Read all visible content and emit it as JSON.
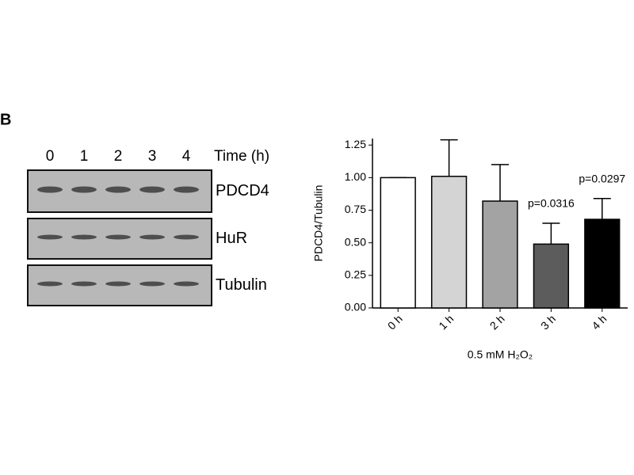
{
  "panel_label": "B",
  "blot": {
    "lanes": [
      "0",
      "1",
      "2",
      "3",
      "4"
    ],
    "lane_title": "Time (h)",
    "rows": [
      "PDCD4",
      "HuR",
      "Tubulin"
    ]
  },
  "chart_data": {
    "type": "bar",
    "ylabel": "PDCD4/Tubulin",
    "xlabel": "0.5 mM H₂O₂",
    "categories": [
      "0 h",
      "1 h",
      "2 h",
      "3 h",
      "4 h"
    ],
    "values": [
      1.0,
      1.01,
      0.82,
      0.49,
      0.68
    ],
    "errors": [
      0,
      0.28,
      0.28,
      0.16,
      0.16
    ],
    "colors": [
      "#ffffff",
      "#d4d4d4",
      "#a3a3a3",
      "#5c5c5c",
      "#000000"
    ],
    "ylim": [
      0,
      1.3
    ],
    "yticks": [
      {
        "value": 0,
        "label": "0.00"
      },
      {
        "value": 0.25,
        "label": "0.25"
      },
      {
        "value": 0.5,
        "label": "0.50"
      },
      {
        "value": 0.75,
        "label": "0.75"
      },
      {
        "value": 1,
        "label": "1.00"
      },
      {
        "value": 1.25,
        "label": "1.25"
      }
    ],
    "annotations": [
      {
        "label": "p=0.0316",
        "at": "3 h"
      },
      {
        "label": "p=0.0297",
        "at": "4 h"
      }
    ]
  }
}
